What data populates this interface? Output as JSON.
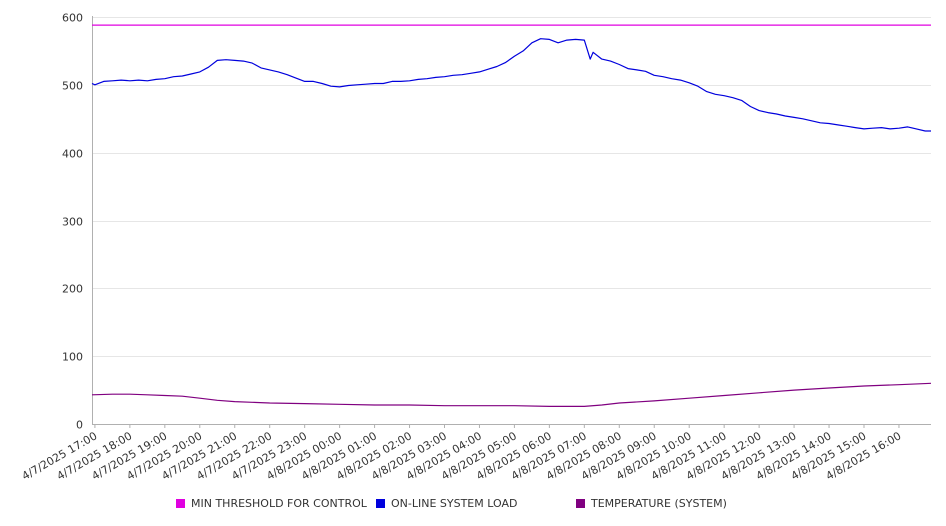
{
  "chart_data": {
    "type": "line",
    "title": "",
    "xlabel": "",
    "ylabel": "",
    "ylim": [
      0,
      600
    ],
    "y_ticks": [
      "0",
      "100",
      "200",
      "300",
      "400",
      "500",
      "600"
    ],
    "x_ticks": [
      "4/7/2025 17:00",
      "4/7/2025 18:00",
      "4/7/2025 19:00",
      "4/7/2025 20:00",
      "4/7/2025 21:00",
      "4/7/2025 22:00",
      "4/7/2025 23:00",
      "4/8/2025 00:00",
      "4/8/2025 01:00",
      "4/8/2025 02:00",
      "4/8/2025 03:00",
      "4/8/2025 04:00",
      "4/8/2025 05:00",
      "4/8/2025 06:00",
      "4/8/2025 07:00",
      "4/8/2025 08:00",
      "4/8/2025 09:00",
      "4/8/2025 10:00",
      "4/8/2025 11:00",
      "4/8/2025 12:00",
      "4/8/2025 13:00",
      "4/8/2025 14:00",
      "4/8/2025 15:00",
      "4/8/2025 16:00"
    ],
    "grid": "horizontal",
    "legend_position": "bottom",
    "series": [
      {
        "name": "MIN THRESHOLD FOR CONTROL",
        "color": "#e000e0",
        "points": [
          [
            "4/7/2025 16:55",
            588
          ],
          [
            "4/8/2025 16:55",
            588
          ]
        ]
      },
      {
        "name": "ON-LINE SYSTEM LOAD",
        "color": "#0000dd",
        "points": [
          [
            "4/7/2025 16:55",
            502
          ],
          [
            "4/7/2025 17:00",
            500
          ],
          [
            "4/7/2025 17:15",
            505
          ],
          [
            "4/7/2025 17:30",
            506
          ],
          [
            "4/7/2025 17:45",
            507
          ],
          [
            "4/7/2025 18:00",
            506
          ],
          [
            "4/7/2025 18:15",
            507
          ],
          [
            "4/7/2025 18:30",
            506
          ],
          [
            "4/7/2025 18:45",
            508
          ],
          [
            "4/7/2025 19:00",
            509
          ],
          [
            "4/7/2025 19:15",
            512
          ],
          [
            "4/7/2025 19:30",
            513
          ],
          [
            "4/7/2025 19:45",
            516
          ],
          [
            "4/7/2025 20:00",
            519
          ],
          [
            "4/7/2025 20:15",
            526
          ],
          [
            "4/7/2025 20:30",
            536
          ],
          [
            "4/7/2025 20:45",
            537
          ],
          [
            "4/7/2025 21:00",
            536
          ],
          [
            "4/7/2025 21:15",
            535
          ],
          [
            "4/7/2025 21:30",
            532
          ],
          [
            "4/7/2025 21:45",
            525
          ],
          [
            "4/7/2025 22:00",
            522
          ],
          [
            "4/7/2025 22:15",
            519
          ],
          [
            "4/7/2025 22:30",
            515
          ],
          [
            "4/7/2025 22:45",
            510
          ],
          [
            "4/7/2025 23:00",
            505
          ],
          [
            "4/7/2025 23:15",
            505
          ],
          [
            "4/7/2025 23:30",
            502
          ],
          [
            "4/7/2025 23:45",
            498
          ],
          [
            "4/8/2025 00:00",
            497
          ],
          [
            "4/8/2025 00:15",
            499
          ],
          [
            "4/8/2025 00:30",
            500
          ],
          [
            "4/8/2025 00:45",
            501
          ],
          [
            "4/8/2025 01:00",
            502
          ],
          [
            "4/8/2025 01:15",
            502
          ],
          [
            "4/8/2025 01:30",
            505
          ],
          [
            "4/8/2025 01:45",
            505
          ],
          [
            "4/8/2025 02:00",
            506
          ],
          [
            "4/8/2025 02:15",
            508
          ],
          [
            "4/8/2025 02:30",
            509
          ],
          [
            "4/8/2025 02:45",
            511
          ],
          [
            "4/8/2025 03:00",
            512
          ],
          [
            "4/8/2025 03:15",
            514
          ],
          [
            "4/8/2025 03:30",
            515
          ],
          [
            "4/8/2025 03:45",
            517
          ],
          [
            "4/8/2025 04:00",
            519
          ],
          [
            "4/8/2025 04:15",
            523
          ],
          [
            "4/8/2025 04:30",
            527
          ],
          [
            "4/8/2025 04:45",
            533
          ],
          [
            "4/8/2025 05:00",
            542
          ],
          [
            "4/8/2025 05:15",
            550
          ],
          [
            "4/8/2025 05:30",
            562
          ],
          [
            "4/8/2025 05:45",
            568
          ],
          [
            "4/8/2025 06:00",
            567
          ],
          [
            "4/8/2025 06:15",
            562
          ],
          [
            "4/8/2025 06:30",
            566
          ],
          [
            "4/8/2025 06:45",
            567
          ],
          [
            "4/8/2025 07:00",
            566
          ],
          [
            "4/8/2025 07:10",
            538
          ],
          [
            "4/8/2025 07:15",
            548
          ],
          [
            "4/8/2025 07:30",
            538
          ],
          [
            "4/8/2025 07:45",
            535
          ],
          [
            "4/8/2025 08:00",
            530
          ],
          [
            "4/8/2025 08:15",
            524
          ],
          [
            "4/8/2025 08:30",
            522
          ],
          [
            "4/8/2025 08:45",
            520
          ],
          [
            "4/8/2025 09:00",
            514
          ],
          [
            "4/8/2025 09:15",
            512
          ],
          [
            "4/8/2025 09:30",
            509
          ],
          [
            "4/8/2025 09:45",
            507
          ],
          [
            "4/8/2025 10:00",
            503
          ],
          [
            "4/8/2025 10:15",
            498
          ],
          [
            "4/8/2025 10:30",
            490
          ],
          [
            "4/8/2025 10:45",
            486
          ],
          [
            "4/8/2025 11:00",
            484
          ],
          [
            "4/8/2025 11:15",
            481
          ],
          [
            "4/8/2025 11:30",
            477
          ],
          [
            "4/8/2025 11:45",
            468
          ],
          [
            "4/8/2025 12:00",
            462
          ],
          [
            "4/8/2025 12:15",
            459
          ],
          [
            "4/8/2025 12:30",
            457
          ],
          [
            "4/8/2025 12:45",
            454
          ],
          [
            "4/8/2025 13:00",
            452
          ],
          [
            "4/8/2025 13:15",
            450
          ],
          [
            "4/8/2025 13:30",
            447
          ],
          [
            "4/8/2025 13:45",
            444
          ],
          [
            "4/8/2025 14:00",
            443
          ],
          [
            "4/8/2025 14:15",
            441
          ],
          [
            "4/8/2025 14:30",
            439
          ],
          [
            "4/8/2025 14:45",
            437
          ],
          [
            "4/8/2025 15:00",
            435
          ],
          [
            "4/8/2025 15:15",
            436
          ],
          [
            "4/8/2025 15:30",
            437
          ],
          [
            "4/8/2025 15:45",
            435
          ],
          [
            "4/8/2025 16:00",
            436
          ],
          [
            "4/8/2025 16:15",
            438
          ],
          [
            "4/8/2025 16:30",
            435
          ],
          [
            "4/8/2025 16:45",
            432
          ],
          [
            "4/8/2025 16:55",
            432
          ]
        ]
      },
      {
        "name": "TEMPERATURE (SYSTEM)",
        "color": "#800080",
        "points": [
          [
            "4/7/2025 16:55",
            43
          ],
          [
            "4/7/2025 17:30",
            44
          ],
          [
            "4/7/2025 18:00",
            44
          ],
          [
            "4/7/2025 18:30",
            43
          ],
          [
            "4/7/2025 19:00",
            42
          ],
          [
            "4/7/2025 19:30",
            41
          ],
          [
            "4/7/2025 20:00",
            38
          ],
          [
            "4/7/2025 20:30",
            35
          ],
          [
            "4/7/2025 21:00",
            33
          ],
          [
            "4/7/2025 21:30",
            32
          ],
          [
            "4/7/2025 22:00",
            31
          ],
          [
            "4/7/2025 23:00",
            30
          ],
          [
            "4/8/2025 00:00",
            29
          ],
          [
            "4/8/2025 01:00",
            28
          ],
          [
            "4/8/2025 02:00",
            28
          ],
          [
            "4/8/2025 03:00",
            27
          ],
          [
            "4/8/2025 04:00",
            27
          ],
          [
            "4/8/2025 05:00",
            27
          ],
          [
            "4/8/2025 06:00",
            26
          ],
          [
            "4/8/2025 07:00",
            26
          ],
          [
            "4/8/2025 07:30",
            28
          ],
          [
            "4/8/2025 08:00",
            31
          ],
          [
            "4/8/2025 09:00",
            34
          ],
          [
            "4/8/2025 10:00",
            38
          ],
          [
            "4/8/2025 11:00",
            42
          ],
          [
            "4/8/2025 12:00",
            46
          ],
          [
            "4/8/2025 13:00",
            50
          ],
          [
            "4/8/2025 14:00",
            53
          ],
          [
            "4/8/2025 15:00",
            56
          ],
          [
            "4/8/2025 16:00",
            58
          ],
          [
            "4/8/2025 16:55",
            60
          ]
        ]
      }
    ]
  }
}
